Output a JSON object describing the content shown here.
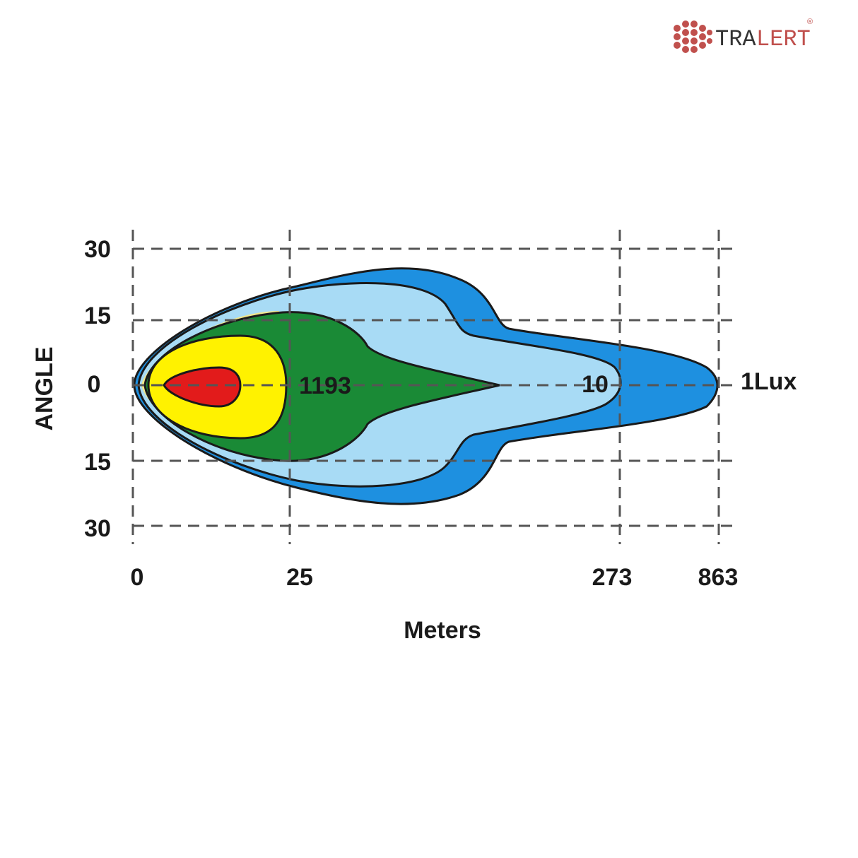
{
  "logo": {
    "text_dark": "TRA",
    "text_red": "LERT",
    "mark": "®"
  },
  "axes": {
    "y_label": "ANGLE",
    "y_ticks": [
      30,
      15,
      0,
      15,
      30
    ],
    "x_label": "Meters",
    "x_ticks": [
      0,
      25,
      273,
      863
    ]
  },
  "contour_labels": [
    1193,
    10,
    "1Lux"
  ]
}
